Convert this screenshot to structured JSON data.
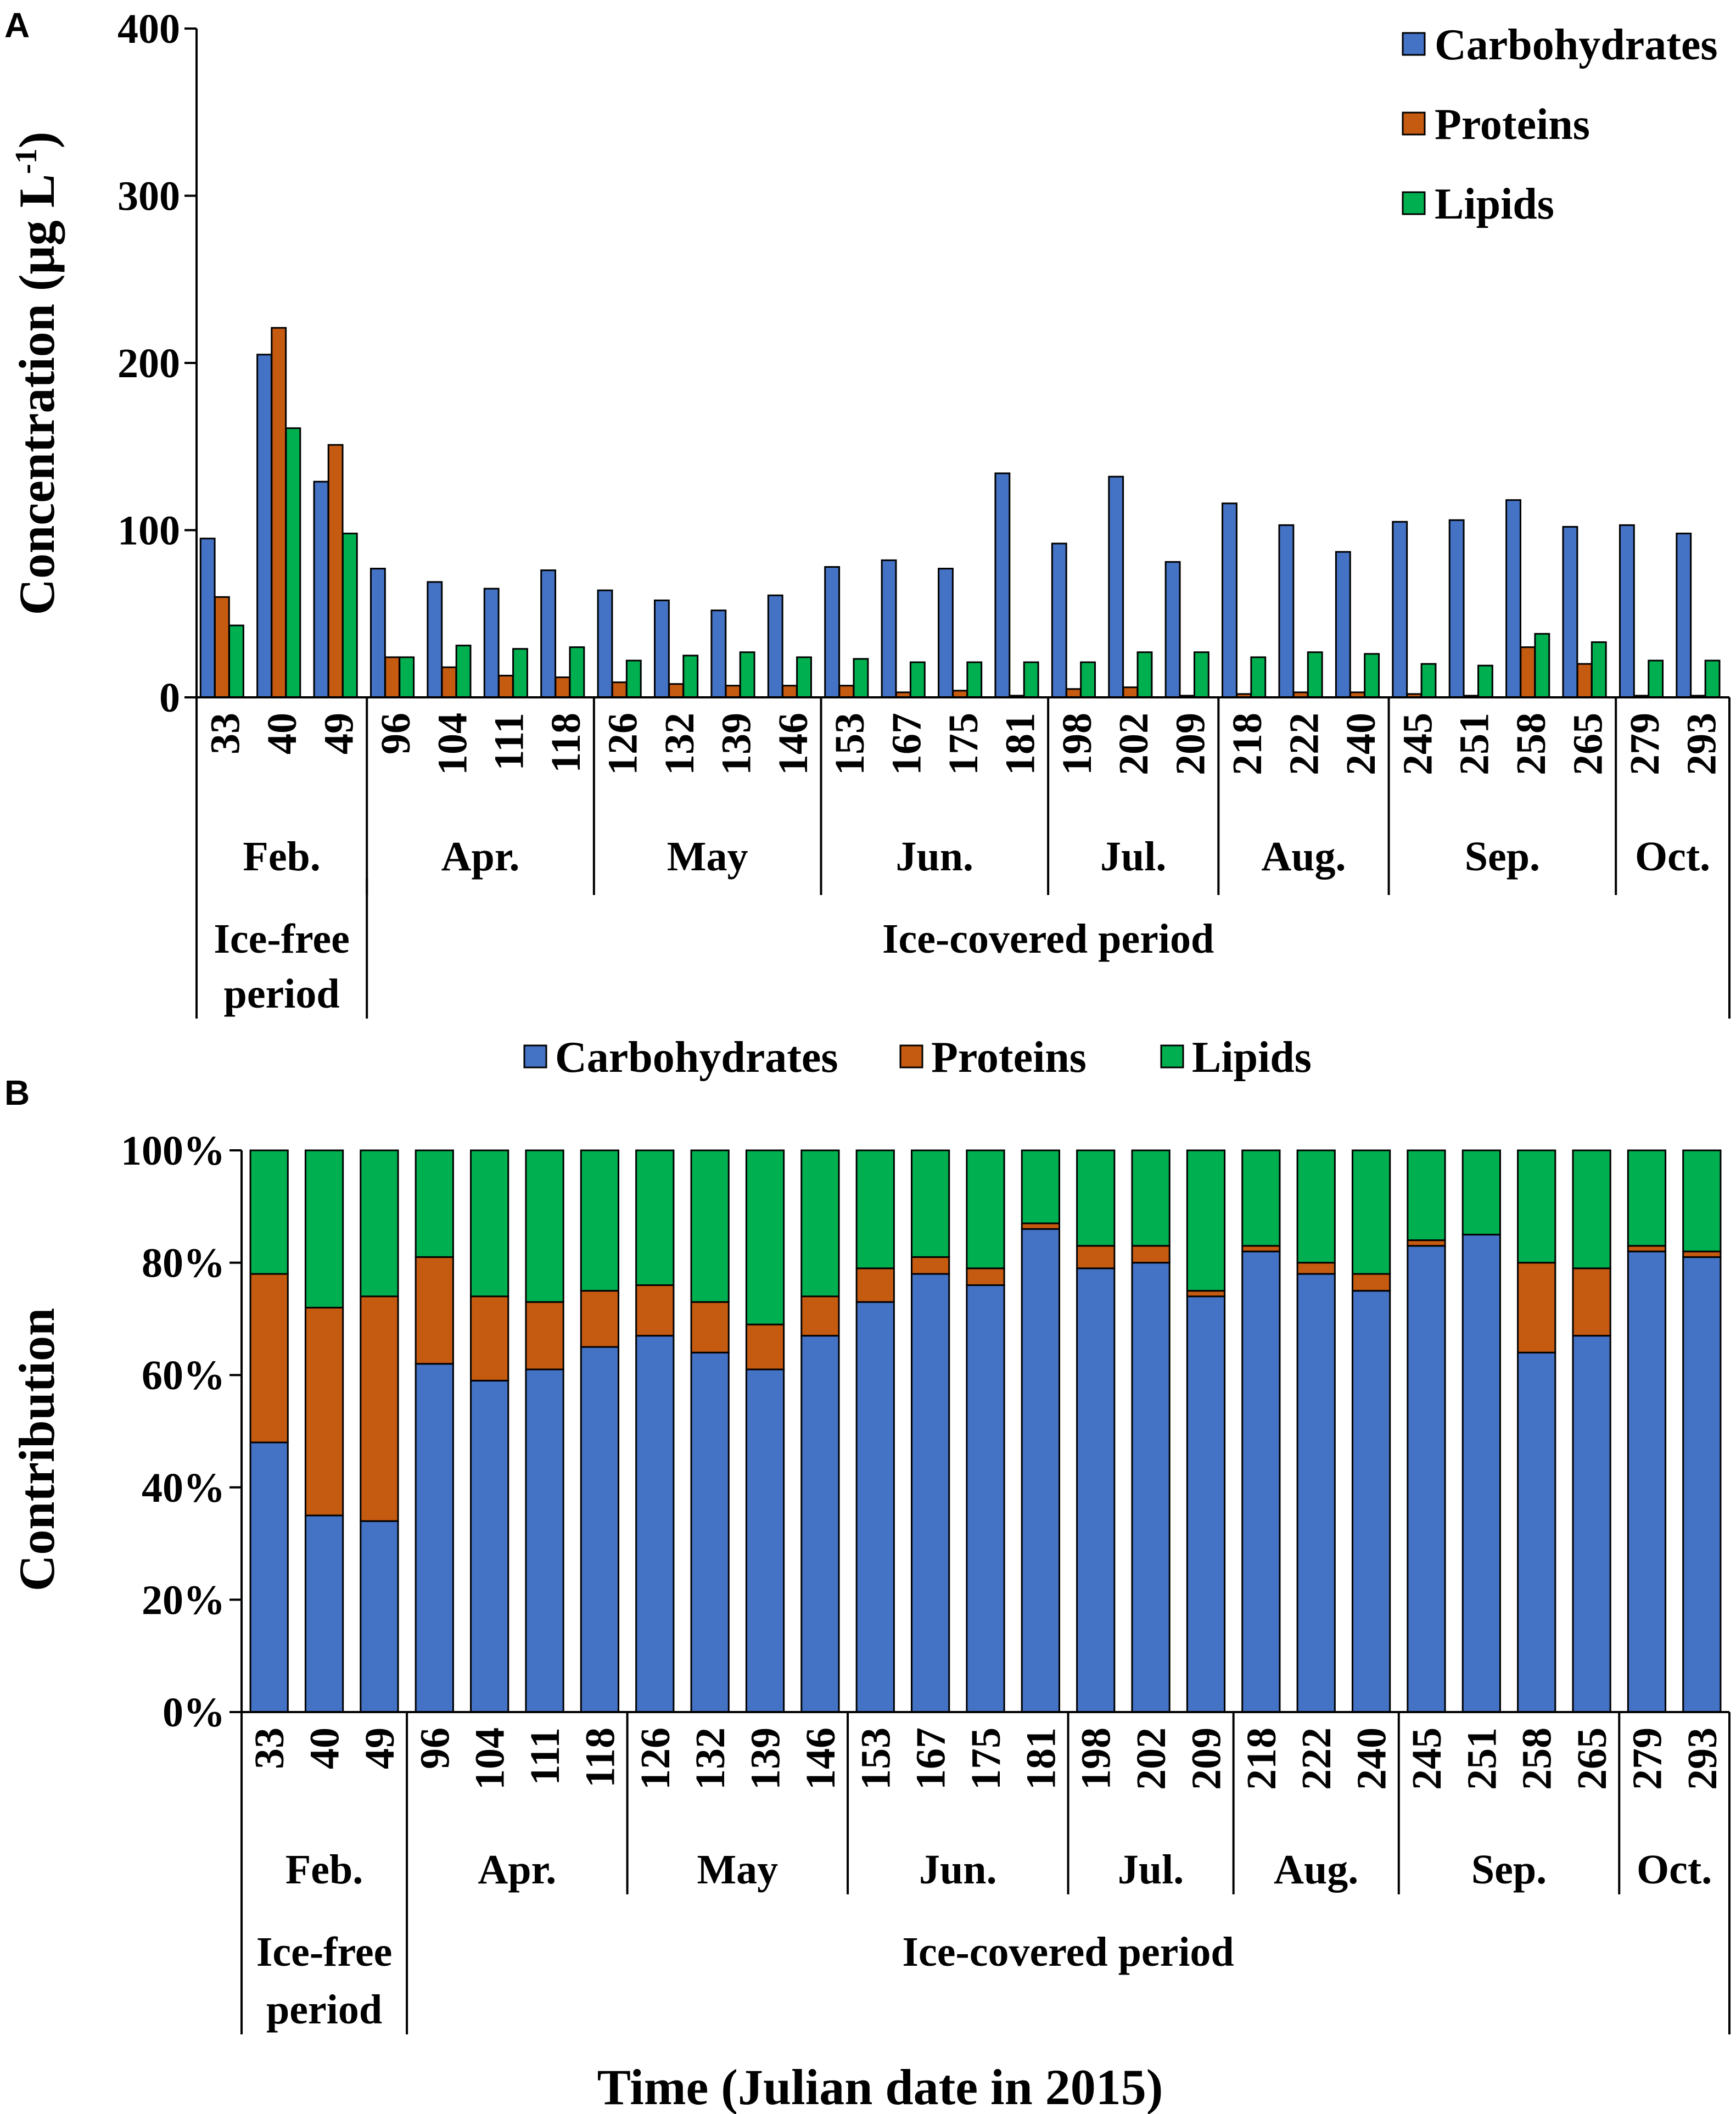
{
  "colors": {
    "carbohydrates": "#4472C4",
    "proteins": "#C55A11",
    "lipids": "#00B050"
  },
  "x_axis_title": "Time (Julian date in 2015)",
  "days": [
    "33",
    "40",
    "49",
    "96",
    "104",
    "111",
    "118",
    "126",
    "132",
    "139",
    "146",
    "153",
    "167",
    "175",
    "181",
    "198",
    "202",
    "209",
    "218",
    "222",
    "240",
    "245",
    "251",
    "258",
    "265",
    "279",
    "293"
  ],
  "months": [
    {
      "label": "Feb.",
      "count": 3
    },
    {
      "label": "Apr.",
      "count": 4
    },
    {
      "label": "May",
      "count": 4
    },
    {
      "label": "Jun.",
      "count": 4
    },
    {
      "label": "Jul.",
      "count": 3
    },
    {
      "label": "Aug.",
      "count": 3
    },
    {
      "label": "Sep.",
      "count": 4
    },
    {
      "label": "Oct.",
      "count": 2
    }
  ],
  "periods": [
    {
      "line1": "Ice-free",
      "line2": "period",
      "count": 3
    },
    {
      "line1": "Ice-covered period",
      "line2": "",
      "count": 24
    }
  ],
  "chart_data": [
    {
      "panel": "A",
      "type": "bar",
      "ylabel": "Concentration (μg L",
      "ylabel_sup": "-1",
      "ylabel_close": ")",
      "ylim": [
        0,
        400
      ],
      "yticks": [
        "0",
        "100",
        "200",
        "300",
        "400"
      ],
      "legend": [
        "Carbohydrates",
        "Proteins",
        "Lipids"
      ],
      "legend_position": "top-right",
      "categories": [
        "33",
        "40",
        "49",
        "96",
        "104",
        "111",
        "118",
        "126",
        "132",
        "139",
        "146",
        "153",
        "167",
        "175",
        "181",
        "198",
        "202",
        "209",
        "218",
        "222",
        "240",
        "245",
        "251",
        "258",
        "265",
        "279",
        "293"
      ],
      "series": [
        {
          "name": "Carbohydrates",
          "values": [
            95,
            205,
            129,
            77,
            69,
            65,
            76,
            64,
            58,
            52,
            61,
            78,
            82,
            77,
            134,
            92,
            132,
            81,
            116,
            103,
            87,
            105,
            106,
            118,
            102,
            103,
            98
          ]
        },
        {
          "name": "Proteins",
          "values": [
            60,
            221,
            151,
            24,
            18,
            13,
            12,
            9,
            8,
            7,
            7,
            7,
            3,
            4,
            1,
            5,
            6,
            1,
            2,
            3,
            3,
            2,
            1,
            30,
            20,
            1,
            1
          ]
        },
        {
          "name": "Lipids",
          "values": [
            43,
            161,
            98,
            24,
            31,
            29,
            30,
            22,
            25,
            27,
            24,
            23,
            21,
            21,
            21,
            21,
            27,
            27,
            24,
            27,
            26,
            20,
            19,
            38,
            33,
            22,
            22
          ]
        }
      ]
    },
    {
      "panel": "B",
      "type": "bar",
      "stacked": true,
      "ylabel": "Contribution",
      "ylim": [
        0,
        100
      ],
      "yticks": [
        "0%",
        "20%",
        "40%",
        "60%",
        "80%",
        "100%"
      ],
      "legend": [
        "Carbohydrates",
        "Proteins",
        "Lipids"
      ],
      "legend_position": "top-center",
      "categories": [
        "33",
        "40",
        "49",
        "96",
        "104",
        "111",
        "118",
        "126",
        "132",
        "139",
        "146",
        "153",
        "167",
        "175",
        "181",
        "198",
        "202",
        "209",
        "218",
        "222",
        "240",
        "245",
        "251",
        "258",
        "265",
        "279",
        "293"
      ],
      "series": [
        {
          "name": "Carbohydrates",
          "values": [
            48,
            35,
            34,
            62,
            59,
            61,
            65,
            67,
            64,
            61,
            67,
            73,
            78,
            76,
            86,
            79,
            80,
            74,
            82,
            78,
            75,
            83,
            85,
            64,
            67,
            82,
            81
          ]
        },
        {
          "name": "Proteins",
          "values": [
            30,
            37,
            40,
            19,
            15,
            12,
            10,
            9,
            9,
            8,
            7,
            6,
            3,
            3,
            1,
            4,
            3,
            1,
            1,
            2,
            3,
            1,
            0,
            16,
            12,
            1,
            1
          ]
        },
        {
          "name": "Lipids",
          "values": [
            22,
            28,
            26,
            19,
            26,
            27,
            25,
            24,
            27,
            31,
            26,
            21,
            19,
            21,
            13,
            17,
            17,
            25,
            17,
            20,
            22,
            16,
            15,
            20,
            21,
            17,
            18
          ]
        }
      ]
    }
  ]
}
